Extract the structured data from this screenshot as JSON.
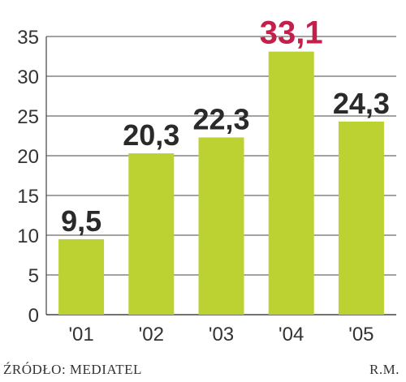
{
  "chart_data": {
    "type": "bar",
    "categories": [
      "'01",
      "'02",
      "'03",
      "'04",
      "'05"
    ],
    "values": [
      9.5,
      20.3,
      22.3,
      33.1,
      24.3
    ],
    "value_labels": [
      "9,5",
      "20,3",
      "22,3",
      "33,1",
      "24,3"
    ],
    "ylim": [
      0,
      35
    ],
    "yticks": [
      0,
      5,
      10,
      15,
      20,
      25,
      30,
      35
    ],
    "grid": true,
    "highlight_index": 3,
    "colors": {
      "bar": "#bcd232",
      "highlight_label": "#c41e4a",
      "grid": "#444444"
    }
  },
  "footer": {
    "source": "ŹRÓDŁO: MEDIATEL",
    "credit": "R.M."
  }
}
